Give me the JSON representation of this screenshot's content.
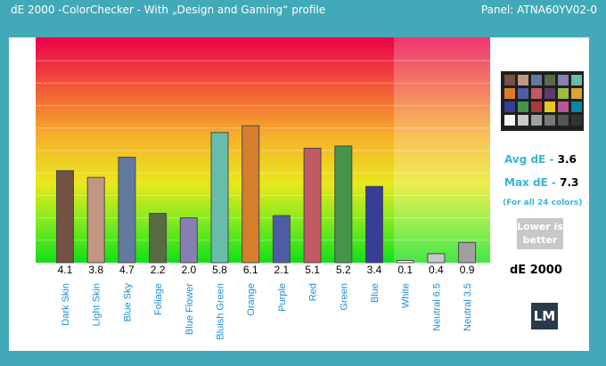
{
  "header": {
    "title": "dE 2000 -ColorChecker - With „Design and Gaming“ profile",
    "panel": "Panel: ATNA60YV02-0"
  },
  "stats": {
    "avg_label": "Avg dE -",
    "avg_value": "3.6",
    "max_label": "Max dE -",
    "max_value": "7.3",
    "note": "(For all 24 colors)",
    "lower_line1": "Lower is",
    "lower_line2": "better",
    "metric_label": "dE 2000"
  },
  "logo": {
    "text": "LM"
  },
  "checker_colors": [
    "#735244",
    "#c29682",
    "#627a9d",
    "#576c43",
    "#8580b1",
    "#67bdaa",
    "#d67e2c",
    "#505ba6",
    "#c15a63",
    "#5e3c6c",
    "#9dbc40",
    "#e0a32e",
    "#383d96",
    "#469449",
    "#af363c",
    "#e7c71f",
    "#bb5695",
    "#0885a1",
    "#f3f3f2",
    "#c8c8c8",
    "#a0a0a0",
    "#7a7a79",
    "#555555",
    "#343434"
  ],
  "chart_data": {
    "type": "bar",
    "title": "dE 2000 -ColorChecker - With „Design and Gaming“ profile",
    "xlabel": "",
    "ylabel": "",
    "ylim": [
      0,
      10
    ],
    "yticks": [
      "1.0",
      "2.0",
      "3.0",
      "4.0",
      "5.0",
      "6.0",
      "7.0",
      "8.0",
      "9.0"
    ],
    "categories": [
      "Dark Skin",
      "Light Skin",
      "Blue Sky",
      "Foliage",
      "Blue Flower",
      "Bluish Green",
      "Orange",
      "Purple",
      "Red",
      "Green",
      "Blue",
      "White",
      "Neutral 6.5",
      "Neutral 3.5"
    ],
    "values": [
      4.1,
      3.8,
      4.7,
      2.2,
      2.0,
      5.8,
      6.1,
      2.1,
      5.1,
      5.2,
      3.4,
      0.1,
      0.4,
      0.9
    ],
    "value_labels": [
      "4.1",
      "3.8",
      "4.7",
      "2.2",
      "2.0",
      "5.8",
      "6.1",
      "2.1",
      "5.1",
      "5.2",
      "3.4",
      "0.1",
      "0.4",
      "0.9"
    ],
    "colors": [
      "#735244",
      "#c29682",
      "#627a9d",
      "#576c43",
      "#8580b1",
      "#67bdaa",
      "#d67e2c",
      "#505ba6",
      "#c15a63",
      "#469449",
      "#383d96",
      "#f3f3f2",
      "#c8c8c8",
      "#a0a0a0"
    ],
    "grid": true
  }
}
